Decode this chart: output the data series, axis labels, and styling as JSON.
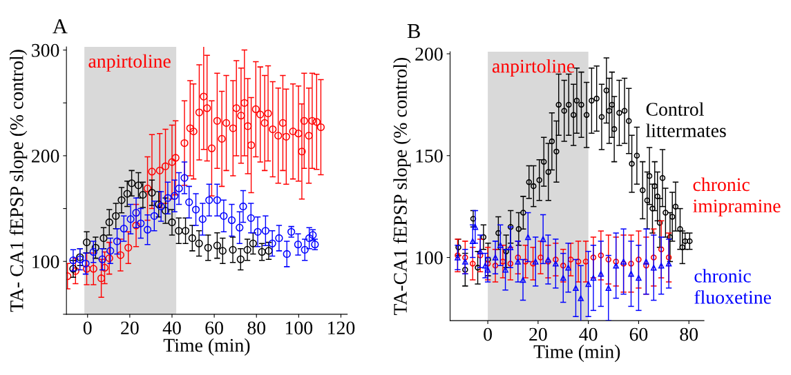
{
  "chart_data": [
    {
      "type": "scatter",
      "annotations": [
        "A"
      ],
      "xlabel": "Time (min)",
      "ylabel": "TA- CA1 fEPSP slope (% control)",
      "xlim": [
        -10,
        123
      ],
      "ylim": [
        50,
        303
      ],
      "xticks": [
        0,
        20,
        40,
        60,
        80,
        100,
        120
      ],
      "yticks": [
        {
          "value": 50,
          "label": null
        },
        100,
        {
          "value": 150,
          "label": null
        },
        200,
        {
          "value": 250,
          "label": null
        },
        300
      ],
      "bands": [
        {
          "axis": "x",
          "from": -1.5,
          "to": 42,
          "label": "anpirtoline",
          "color": "#d9d9d9"
        }
      ],
      "marker": "circle",
      "grid": false,
      "legend": false,
      "series": [
        {
          "color": "#ff0000",
          "x": [
            -9.5,
            -5.7,
            -0.4,
            2.8,
            6.5,
            8.1,
            10.3,
            15.6,
            19.3,
            23,
            28.4,
            30.5,
            34.2,
            36.9,
            40,
            41.7,
            45.9,
            48.6,
            50.2,
            52.9,
            55,
            56.6,
            58.8,
            61.4,
            63.6,
            65.7,
            68.9,
            70.5,
            72.7,
            74.3,
            75.9,
            77.5,
            79.7,
            81.8,
            83.9,
            85.5,
            87.7,
            90.3,
            92.5,
            94.1,
            97.3,
            99.9,
            101.5,
            102.6,
            104.8,
            106.4,
            108.5,
            110.5
          ],
          "values": [
            86,
            91,
            93,
            93,
            84,
            94,
            103,
            106,
            113,
            134,
            169,
            185,
            186,
            190,
            194,
            198,
            212,
            226,
            223,
            241,
            256,
            245,
            207,
            233,
            216,
            231,
            226,
            245,
            238,
            250,
            228,
            210,
            244,
            239,
            231,
            240,
            225,
            219,
            231,
            218,
            223,
            221,
            204,
            233,
            219,
            233,
            232,
            227
          ],
          "errors": [
            12,
            12,
            15,
            15,
            18,
            15,
            15,
            15,
            15,
            20,
            30,
            35,
            35,
            35,
            35,
            35,
            40,
            45,
            45,
            45,
            50,
            50,
            45,
            45,
            45,
            45,
            45,
            45,
            45,
            50,
            45,
            45,
            45,
            45,
            45,
            45,
            45,
            45,
            45,
            45,
            45,
            45,
            45,
            45,
            45,
            45,
            45,
            45
          ]
        },
        {
          "color": "#000000",
          "x": [
            -6.8,
            -3.6,
            -0.4,
            3.8,
            7.6,
            10.3,
            13.4,
            16.1,
            18.8,
            20.9,
            24.1,
            26.2,
            30.5,
            33.7,
            36.9,
            40,
            43.2,
            46.4,
            49.6,
            52.8,
            57.1,
            61.4,
            64,
            68.8,
            72.5,
            75.7,
            78.4,
            82.6,
            85.8
          ],
          "values": [
            93,
            104,
            118,
            113,
            122,
            137,
            143,
            158,
            164,
            174,
            172,
            163,
            165,
            154,
            148,
            137,
            129,
            129,
            122,
            117,
            113,
            115,
            110,
            111,
            102,
            111,
            117,
            109,
            110
          ],
          "errors": [
            8,
            8,
            10,
            10,
            10,
            12,
            12,
            12,
            12,
            12,
            12,
            12,
            12,
            12,
            12,
            12,
            12,
            12,
            12,
            12,
            12,
            12,
            12,
            12,
            10,
            10,
            10,
            8,
            8
          ]
        },
        {
          "color": "#0000ff",
          "x": [
            -6.8,
            -3.6,
            -0.9,
            2.8,
            7,
            10.8,
            14,
            17.2,
            20.4,
            23,
            25.2,
            28.4,
            31.6,
            34.8,
            38,
            41.2,
            43.3,
            45.9,
            48.1,
            51.3,
            54.5,
            57.6,
            61.4,
            64.5,
            68.3,
            72,
            73.7,
            77.4,
            80.6,
            84.3,
            87.5,
            90.7,
            94.4,
            96.5,
            99.7,
            102.9,
            105,
            106.7,
            107.7
          ],
          "values": [
            101,
            102,
            98,
            109,
            102,
            110,
            119,
            131,
            140,
            146,
            136,
            130,
            143,
            152,
            160,
            162,
            169,
            179,
            156,
            149,
            140,
            158,
            158,
            143,
            139,
            132,
            152,
            141,
            128,
            129,
            117,
            122,
            107,
            128,
            116,
            111,
            122,
            125,
            116
          ],
          "errors": [
            10,
            10,
            10,
            10,
            10,
            12,
            12,
            12,
            14,
            14,
            14,
            14,
            14,
            14,
            15,
            15,
            15,
            15,
            15,
            15,
            15,
            15,
            15,
            15,
            15,
            15,
            15,
            14,
            14,
            14,
            12,
            12,
            12,
            5,
            10,
            10,
            10,
            5,
            5
          ]
        }
      ]
    },
    {
      "type": "scatter",
      "annotations": [
        "B"
      ],
      "xlabel": "Time (min)",
      "ylabel": "TA-CA1 fEPSP slope (% control)",
      "xlim": [
        -15,
        86
      ],
      "ylim": [
        69,
        201
      ],
      "xticks": [
        0,
        20,
        40,
        60,
        80
      ],
      "yticks": [
        100,
        150,
        200
      ],
      "bands": [
        {
          "axis": "x",
          "from": 0,
          "to": 40,
          "label": "anpirtoline",
          "color": "#d9d9d9"
        }
      ],
      "marker": "circle",
      "grid": false,
      "legend": false,
      "series": [
        {
          "name": "Control\nlittermates",
          "color": "#000000",
          "x": [
            -11.7,
            -9,
            -5.8,
            -4,
            -1.7,
            0.1,
            4.2,
            7.3,
            9.1,
            12.3,
            14.1,
            16.4,
            18.2,
            20.5,
            22.3,
            24.1,
            25.5,
            27.3,
            28.2,
            30.4,
            32.2,
            34.1,
            35.4,
            37.2,
            39.3,
            41.3,
            43.3,
            45.3,
            47.2,
            48.3,
            49.4,
            50.3,
            52.3,
            54.4,
            56.1,
            57.3,
            59.3,
            61.6,
            63.4,
            64.3,
            65.5,
            66.4,
            67.5,
            68.4,
            69.5,
            70.7,
            72.5,
            73.4,
            74.7,
            76.5,
            77.4,
            78.5,
            80.3
          ],
          "values": [
            105,
            94,
            119,
            95,
            110,
            99,
            112,
            103,
            115,
            114,
            122,
            137,
            135,
            138,
            147,
            142,
            157,
            152,
            175,
            172,
            175,
            170,
            177,
            175,
            170,
            177,
            178,
            169,
            182,
            172,
            175,
            163,
            171,
            172,
            167,
            146,
            150,
            133,
            128,
            140,
            124,
            135,
            130,
            117,
            139,
            122,
            110,
            120,
            125,
            114,
            105,
            108,
            108
          ],
          "errors": [
            4,
            8,
            4,
            8,
            6,
            8,
            8,
            8,
            8,
            8,
            8,
            8,
            10,
            10,
            12,
            14,
            14,
            15,
            15,
            15,
            15,
            15,
            16,
            16,
            16,
            16,
            16,
            16,
            16,
            16,
            16,
            16,
            16,
            16,
            16,
            14,
            14,
            14,
            14,
            14,
            12,
            12,
            12,
            12,
            14,
            12,
            12,
            12,
            12,
            10,
            8,
            4,
            4
          ]
        },
        {
          "name": "chronic\nimipramine",
          "color": "#ff0000",
          "x": [
            -12,
            -9,
            -6,
            -3,
            0,
            3,
            6,
            9,
            12,
            15,
            18,
            21,
            24,
            27,
            30,
            33,
            36,
            39,
            42,
            45,
            48,
            51,
            54,
            57,
            60,
            63,
            66,
            69,
            72
          ],
          "values": [
            101,
            100,
            97,
            101,
            97,
            96,
            98,
            97,
            100,
            98,
            97,
            100,
            98,
            99,
            96,
            99,
            98,
            98,
            100,
            101,
            99,
            98,
            97,
            97,
            99,
            96,
            100,
            104,
            100
          ],
          "errors": [
            8,
            8,
            8,
            8,
            8,
            8,
            8,
            8,
            8,
            8,
            8,
            8,
            8,
            8,
            8,
            8,
            10,
            10,
            10,
            12,
            12,
            12,
            14,
            14,
            14,
            14,
            14,
            14,
            12
          ]
        },
        {
          "name": "chronic\nfluoxetine",
          "color": "#0000ff",
          "marker": "triangle",
          "x": [
            -12,
            -9,
            -6,
            -5,
            -3,
            -1,
            0,
            3,
            5,
            7,
            9,
            12,
            14,
            16,
            19,
            22,
            24,
            27,
            30,
            32,
            35,
            37,
            40,
            42,
            45,
            48,
            51,
            54,
            57,
            60,
            63,
            66,
            69,
            72
          ],
          "values": [
            100,
            98,
            108,
            115,
            103,
            96,
            94,
            100,
            106,
            94,
            105,
            98,
            89,
            110,
            98,
            109,
            99,
            97,
            90,
            95,
            85,
            80,
            87,
            90,
            92,
            85,
            96,
            98,
            92,
            90,
            98,
            95,
            96,
            97
          ],
          "errors": [
            6,
            6,
            8,
            8,
            8,
            6,
            6,
            8,
            10,
            10,
            10,
            10,
            10,
            12,
            12,
            12,
            12,
            12,
            12,
            12,
            14,
            16,
            16,
            16,
            16,
            16,
            16,
            16,
            16,
            16,
            16,
            16,
            14,
            12
          ]
        }
      ]
    }
  ]
}
